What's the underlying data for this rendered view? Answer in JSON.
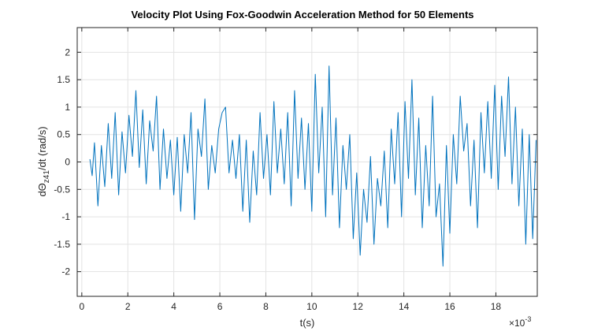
{
  "chart_data": {
    "type": "line",
    "title": "Velocity Plot Using Fox-Goodwin Acceleration Method for 50 Elements",
    "xlabel": "t(s)",
    "ylabel": "dΘ",
    "ylabel_sub": "z41",
    "ylabel_tail": "/dt  (rad/s)",
    "x_exponent_label": "×10",
    "x_exponent_value": "-3",
    "xlim": [
      -0.2,
      19.8
    ],
    "ylim": [
      -2.45,
      2.45
    ],
    "xticks": [
      0,
      2,
      4,
      6,
      8,
      10,
      12,
      14,
      16,
      18
    ],
    "xtick_labels": [
      "0",
      "2",
      "4",
      "6",
      "8",
      "10",
      "12",
      "14",
      "16",
      "18"
    ],
    "yticks": [
      2,
      1.5,
      1,
      0.5,
      0,
      -0.5,
      -1,
      -1.5,
      -2
    ],
    "ytick_labels": [
      "2",
      "1.5",
      "1",
      "0.5",
      "0",
      "-0.5",
      "-1",
      "-1.5",
      "-2"
    ],
    "grid": true,
    "line_color": "#0072BD",
    "series": [
      {
        "x": [
          0.35,
          0.45,
          0.55,
          0.7,
          0.85,
          1.0,
          1.15,
          1.3,
          1.45,
          1.6,
          1.75,
          1.9,
          2.05,
          2.2,
          2.35,
          2.5,
          2.65,
          2.8,
          2.95,
          3.1,
          3.25,
          3.4,
          3.55,
          3.7,
          3.85,
          4.0,
          4.15,
          4.3,
          4.45,
          4.6,
          4.75,
          4.9,
          5.05,
          5.2,
          5.35,
          5.5,
          5.65,
          5.8,
          5.95,
          6.1,
          6.25,
          6.4,
          6.55,
          6.7,
          6.85,
          7.0,
          7.15,
          7.3,
          7.45,
          7.6,
          7.75,
          7.9,
          8.05,
          8.2,
          8.35,
          8.5,
          8.65,
          8.8,
          8.95,
          9.1,
          9.25,
          9.4,
          9.55,
          9.7,
          9.85,
          10.0,
          10.15,
          10.3,
          10.45,
          10.6,
          10.75,
          10.9,
          11.05,
          11.2,
          11.35,
          11.5,
          11.65,
          11.8,
          11.95,
          12.1,
          12.25,
          12.4,
          12.55,
          12.7,
          12.85,
          13.0,
          13.15,
          13.3,
          13.45,
          13.6,
          13.75,
          13.9,
          14.05,
          14.2,
          14.35,
          14.5,
          14.65,
          14.8,
          14.95,
          15.1,
          15.25,
          15.4,
          15.55,
          15.7,
          15.85,
          16.0,
          16.15,
          16.3,
          16.45,
          16.6,
          16.75,
          16.9,
          17.05,
          17.2,
          17.35,
          17.5,
          17.65,
          17.8,
          17.95,
          18.1,
          18.25,
          18.4,
          18.55,
          18.7,
          18.85,
          19.0,
          19.15,
          19.3,
          19.45,
          19.6,
          19.75
        ],
        "y": [
          0.05,
          -0.25,
          0.35,
          -0.8,
          0.3,
          -0.45,
          0.7,
          -0.3,
          0.9,
          -0.6,
          0.55,
          -0.2,
          0.85,
          0.1,
          1.3,
          -0.1,
          0.95,
          -0.4,
          0.75,
          0.2,
          1.2,
          -0.5,
          0.6,
          -0.3,
          0.4,
          -0.6,
          0.45,
          -0.9,
          0.5,
          -0.2,
          0.9,
          -1.05,
          0.6,
          0.1,
          1.15,
          -0.5,
          0.3,
          -0.2,
          0.6,
          0.9,
          1.0,
          -0.2,
          0.4,
          -0.3,
          0.5,
          -0.9,
          0.4,
          -1.1,
          0.2,
          -0.6,
          0.9,
          -0.3,
          0.5,
          -0.6,
          1.1,
          -0.2,
          0.6,
          -0.4,
          0.9,
          -0.8,
          1.3,
          -0.3,
          0.8,
          -0.5,
          0.7,
          -0.9,
          1.6,
          -0.2,
          1.0,
          -1.0,
          1.75,
          -0.6,
          0.8,
          -1.2,
          0.3,
          -0.5,
          0.5,
          -1.4,
          -0.2,
          -1.7,
          -0.5,
          -1.1,
          0.1,
          -1.5,
          -0.3,
          -0.8,
          0.2,
          -1.2,
          0.6,
          -0.4,
          0.9,
          -1.0,
          1.1,
          -0.3,
          1.5,
          -0.6,
          0.8,
          -1.2,
          0.3,
          -0.8,
          1.2,
          -1.0,
          -0.4,
          -1.9,
          0.3,
          -1.3,
          0.5,
          -0.4,
          1.2,
          0.2,
          0.7,
          -0.8,
          0.4,
          -1.2,
          0.9,
          -0.2,
          1.1,
          -0.3,
          1.4,
          -0.5,
          1.2,
          0.1,
          1.55,
          -0.4,
          1.0,
          -0.8,
          0.6,
          -1.5,
          0.5,
          -1.4,
          0.4
        ]
      }
    ]
  }
}
